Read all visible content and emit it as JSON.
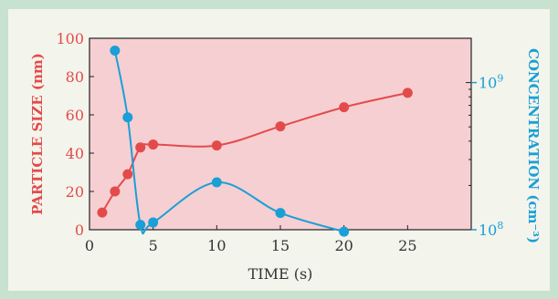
{
  "chart_data": {
    "type": "line",
    "xlabel": "TIME (s)",
    "ylabel_left": "PARTICLE SIZE (nm)",
    "ylabel_right": "CONCENTRATION (cm⁻³)",
    "xlim": [
      0,
      30
    ],
    "ylim_left": [
      0,
      100
    ],
    "ylim_right_log": [
      100000000,
      2000000000
    ],
    "x_ticks": [
      0,
      5,
      10,
      15,
      20,
      25
    ],
    "y_left_ticks": [
      0,
      20,
      40,
      60,
      80,
      100
    ],
    "y_right_ticks": [
      {
        "value": 100000000,
        "label": "10",
        "exp": "8"
      },
      {
        "value": 1000000000,
        "label": "10",
        "exp": "9"
      }
    ],
    "grid": false,
    "colors": {
      "size": "#e34b4b",
      "concentration": "#1a9fd6",
      "background": "#c7e2cf",
      "panel": "#f3f4ec"
    },
    "series": [
      {
        "key": "size",
        "axis": "left",
        "points": [
          {
            "x": 1,
            "y": 9
          },
          {
            "x": 2,
            "y": 20
          },
          {
            "x": 3,
            "y": 29
          },
          {
            "x": 4,
            "y": 43
          },
          {
            "x": 5,
            "y": 44.5
          },
          {
            "x": 10,
            "y": 44
          },
          {
            "x": 15,
            "y": 54
          },
          {
            "x": 20,
            "y": 64
          },
          {
            "x": 25,
            "y": 71.5
          }
        ]
      },
      {
        "key": "concentration",
        "axis": "right",
        "points": [
          {
            "x": 2,
            "y": 1650000000
          },
          {
            "x": 3,
            "y": 580000000
          },
          {
            "x": 4,
            "y": 108000000
          },
          {
            "x": 5,
            "y": 112000000
          },
          {
            "x": 10,
            "y": 210000000
          },
          {
            "x": 15,
            "y": 130000000
          },
          {
            "x": 20,
            "y": 97000000
          }
        ]
      }
    ]
  }
}
